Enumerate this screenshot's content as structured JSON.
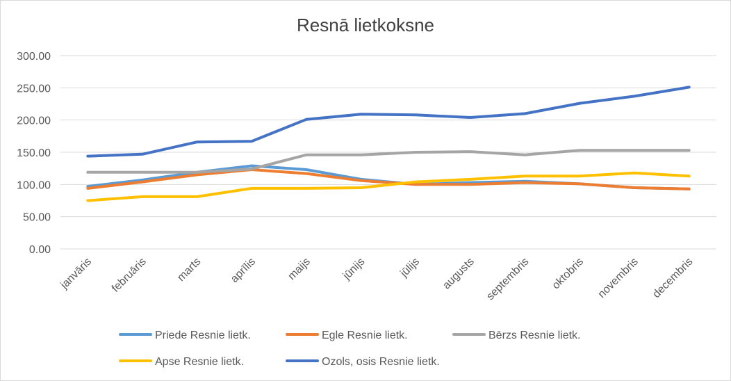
{
  "chart_data": {
    "type": "line",
    "title": "Resnā lietkoksne",
    "xlabel": "",
    "ylabel": "",
    "ylim": [
      0,
      300
    ],
    "y_ticks": [
      "0.00",
      "50.00",
      "100.00",
      "150.00",
      "200.00",
      "250.00",
      "300.00"
    ],
    "y_tick_values": [
      0,
      50,
      100,
      150,
      200,
      250,
      300
    ],
    "categories": [
      "janvāris",
      "februāris",
      "marts",
      "aprīlis",
      "maijs",
      "jūnijs",
      "jūlijs",
      "augusts",
      "septembris",
      "oktobris",
      "novembris",
      "decembris"
    ],
    "grid": true,
    "legend_position": "bottom",
    "series": [
      {
        "name": "Priede Resnie lietk.",
        "color": "#5B9BD5",
        "values": [
          97,
          107,
          119,
          129,
          123,
          108,
          100,
          103,
          105,
          101,
          95,
          93
        ]
      },
      {
        "name": "Egle Resnie lietk.",
        "color": "#ED7D31",
        "values": [
          94,
          104,
          115,
          123,
          117,
          106,
          100,
          100,
          103,
          101,
          95,
          93
        ]
      },
      {
        "name": "Bērzs Resnie lietk.",
        "color": "#A5A5A5",
        "values": [
          119,
          119,
          119,
          124,
          146,
          146,
          150,
          151,
          146,
          153,
          153,
          153
        ]
      },
      {
        "name": "Apse Resnie lietk.",
        "color": "#FFC000",
        "values": [
          75,
          81,
          81,
          94,
          94,
          95,
          104,
          108,
          113,
          113,
          118,
          113
        ]
      },
      {
        "name": "Ozols, osis Resnie lietk.",
        "color": "#4472C4",
        "values": [
          144,
          147,
          166,
          167,
          201,
          209,
          208,
          204,
          210,
          226,
          237,
          251
        ]
      }
    ]
  }
}
